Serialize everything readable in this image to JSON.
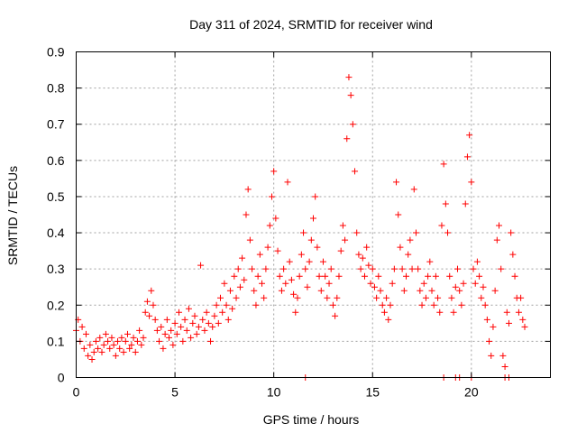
{
  "chart_data": {
    "type": "scatter",
    "title": "Day 311 of 2024, SRMTID for receiver wind",
    "xlabel": "GPS time / hours",
    "ylabel": "SRMTID / TECUs",
    "xlim": [
      0,
      24
    ],
    "ylim": [
      0,
      0.9
    ],
    "x_ticks": [
      0,
      5,
      10,
      15,
      20
    ],
    "x_tick_labels": [
      "0",
      "5",
      "10",
      "15",
      "20"
    ],
    "y_ticks": [
      0,
      0.1,
      0.2,
      0.3,
      0.4,
      0.5,
      0.6,
      0.7,
      0.8,
      0.9
    ],
    "y_tick_labels": [
      "0",
      "0.1",
      "0.2",
      "0.3",
      "0.4",
      "0.5",
      "0.6",
      "0.7",
      "0.8",
      "0.9"
    ],
    "grid": true,
    "marker": "+",
    "color": "#ff0000",
    "series": [
      {
        "name": "SRMTID",
        "points": [
          [
            0.0,
            0.13
          ],
          [
            0.1,
            0.16
          ],
          [
            0.2,
            0.1
          ],
          [
            0.3,
            0.14
          ],
          [
            0.4,
            0.08
          ],
          [
            0.5,
            0.12
          ],
          [
            0.6,
            0.06
          ],
          [
            0.7,
            0.09
          ],
          [
            0.8,
            0.05
          ],
          [
            0.9,
            0.07
          ],
          [
            1.0,
            0.1
          ],
          [
            1.1,
            0.08
          ],
          [
            1.2,
            0.11
          ],
          [
            1.3,
            0.07
          ],
          [
            1.4,
            0.09
          ],
          [
            1.5,
            0.12
          ],
          [
            1.6,
            0.1
          ],
          [
            1.7,
            0.08
          ],
          [
            1.8,
            0.11
          ],
          [
            1.9,
            0.09
          ],
          [
            2.0,
            0.06
          ],
          [
            2.1,
            0.1
          ],
          [
            2.2,
            0.08
          ],
          [
            2.3,
            0.11
          ],
          [
            2.4,
            0.07
          ],
          [
            2.5,
            0.1
          ],
          [
            2.6,
            0.12
          ],
          [
            2.7,
            0.08
          ],
          [
            2.8,
            0.09
          ],
          [
            2.9,
            0.11
          ],
          [
            3.0,
            0.07
          ],
          [
            3.1,
            0.1
          ],
          [
            3.2,
            0.13
          ],
          [
            3.3,
            0.09
          ],
          [
            3.4,
            0.11
          ],
          [
            3.5,
            0.18
          ],
          [
            3.6,
            0.21
          ],
          [
            3.7,
            0.17
          ],
          [
            3.8,
            0.24
          ],
          [
            3.9,
            0.2
          ],
          [
            4.0,
            0.16
          ],
          [
            4.1,
            0.13
          ],
          [
            4.2,
            0.1
          ],
          [
            4.3,
            0.14
          ],
          [
            4.4,
            0.08
          ],
          [
            4.5,
            0.12
          ],
          [
            4.6,
            0.16
          ],
          [
            4.7,
            0.11
          ],
          [
            4.8,
            0.13
          ],
          [
            4.9,
            0.09
          ],
          [
            5.0,
            0.15
          ],
          [
            5.1,
            0.12
          ],
          [
            5.2,
            0.18
          ],
          [
            5.3,
            0.14
          ],
          [
            5.4,
            0.1
          ],
          [
            5.5,
            0.16
          ],
          [
            5.6,
            0.13
          ],
          [
            5.7,
            0.19
          ],
          [
            5.8,
            0.11
          ],
          [
            5.9,
            0.15
          ],
          [
            6.0,
            0.17
          ],
          [
            6.1,
            0.12
          ],
          [
            6.2,
            0.14
          ],
          [
            6.3,
            0.31
          ],
          [
            6.4,
            0.16
          ],
          [
            6.5,
            0.13
          ],
          [
            6.6,
            0.18
          ],
          [
            6.7,
            0.15
          ],
          [
            6.8,
            0.1
          ],
          [
            6.9,
            0.14
          ],
          [
            7.0,
            0.17
          ],
          [
            7.1,
            0.2
          ],
          [
            7.2,
            0.15
          ],
          [
            7.3,
            0.22
          ],
          [
            7.4,
            0.18
          ],
          [
            7.5,
            0.26
          ],
          [
            7.6,
            0.2
          ],
          [
            7.7,
            0.16
          ],
          [
            7.8,
            0.24
          ],
          [
            7.9,
            0.19
          ],
          [
            8.0,
            0.28
          ],
          [
            8.1,
            0.22
          ],
          [
            8.2,
            0.3
          ],
          [
            8.3,
            0.25
          ],
          [
            8.4,
            0.33
          ],
          [
            8.5,
            0.27
          ],
          [
            8.6,
            0.45
          ],
          [
            8.7,
            0.52
          ],
          [
            8.8,
            0.38
          ],
          [
            8.9,
            0.3
          ],
          [
            9.0,
            0.24
          ],
          [
            9.1,
            0.2
          ],
          [
            9.2,
            0.28
          ],
          [
            9.3,
            0.34
          ],
          [
            9.4,
            0.26
          ],
          [
            9.5,
            0.22
          ],
          [
            9.6,
            0.3
          ],
          [
            9.7,
            0.36
          ],
          [
            9.8,
            0.42
          ],
          [
            9.9,
            0.5
          ],
          [
            10.0,
            0.57
          ],
          [
            10.1,
            0.44
          ],
          [
            10.2,
            0.35
          ],
          [
            10.3,
            0.28
          ],
          [
            10.4,
            0.24
          ],
          [
            10.5,
            0.3
          ],
          [
            10.6,
            0.26
          ],
          [
            10.7,
            0.54
          ],
          [
            10.8,
            0.32
          ],
          [
            10.9,
            0.27
          ],
          [
            11.0,
            0.23
          ],
          [
            11.1,
            0.18
          ],
          [
            11.2,
            0.22
          ],
          [
            11.3,
            0.28
          ],
          [
            11.4,
            0.34
          ],
          [
            11.5,
            0.4
          ],
          [
            11.6,
            0.3
          ],
          [
            11.7,
            0.25
          ],
          [
            11.8,
            0.32
          ],
          [
            11.9,
            0.38
          ],
          [
            12.0,
            0.44
          ],
          [
            12.1,
            0.5
          ],
          [
            12.2,
            0.36
          ],
          [
            12.3,
            0.28
          ],
          [
            12.4,
            0.24
          ],
          [
            12.5,
            0.32
          ],
          [
            12.6,
            0.28
          ],
          [
            12.7,
            0.22
          ],
          [
            12.8,
            0.26
          ],
          [
            12.9,
            0.3
          ],
          [
            13.0,
            0.2
          ],
          [
            13.1,
            0.17
          ],
          [
            13.2,
            0.22
          ],
          [
            13.3,
            0.28
          ],
          [
            13.4,
            0.35
          ],
          [
            13.5,
            0.42
          ],
          [
            13.6,
            0.38
          ],
          [
            13.7,
            0.66
          ],
          [
            13.8,
            0.83
          ],
          [
            13.9,
            0.78
          ],
          [
            14.0,
            0.7
          ],
          [
            14.1,
            0.57
          ],
          [
            14.2,
            0.4
          ],
          [
            14.3,
            0.34
          ],
          [
            14.4,
            0.3
          ],
          [
            14.5,
            0.33
          ],
          [
            14.6,
            0.28
          ],
          [
            14.7,
            0.36
          ],
          [
            14.8,
            0.31
          ],
          [
            14.9,
            0.26
          ],
          [
            15.0,
            0.3
          ],
          [
            15.1,
            0.25
          ],
          [
            15.2,
            0.22
          ],
          [
            15.3,
            0.28
          ],
          [
            15.4,
            0.24
          ],
          [
            15.5,
            0.2
          ],
          [
            15.6,
            0.18
          ],
          [
            15.7,
            0.22
          ],
          [
            15.8,
            0.16
          ],
          [
            15.9,
            0.2
          ],
          [
            16.0,
            0.26
          ],
          [
            16.1,
            0.3
          ],
          [
            16.2,
            0.54
          ],
          [
            16.3,
            0.45
          ],
          [
            16.4,
            0.36
          ],
          [
            16.5,
            0.3
          ],
          [
            16.6,
            0.24
          ],
          [
            16.7,
            0.28
          ],
          [
            16.8,
            0.34
          ],
          [
            16.9,
            0.38
          ],
          [
            17.0,
            0.3
          ],
          [
            17.1,
            0.52
          ],
          [
            17.2,
            0.4
          ],
          [
            17.3,
            0.3
          ],
          [
            17.4,
            0.24
          ],
          [
            17.5,
            0.2
          ],
          [
            17.6,
            0.26
          ],
          [
            17.7,
            0.22
          ],
          [
            17.8,
            0.28
          ],
          [
            17.9,
            0.32
          ],
          [
            18.0,
            0.24
          ],
          [
            18.1,
            0.2
          ],
          [
            18.2,
            0.28
          ],
          [
            18.3,
            0.22
          ],
          [
            18.4,
            0.18
          ],
          [
            18.5,
            0.42
          ],
          [
            18.6,
            0.59
          ],
          [
            18.7,
            0.48
          ],
          [
            18.8,
            0.4
          ],
          [
            18.9,
            0.28
          ],
          [
            19.0,
            0.22
          ],
          [
            19.1,
            0.18
          ],
          [
            19.2,
            0.25
          ],
          [
            19.3,
            0.3
          ],
          [
            19.4,
            0.24
          ],
          [
            19.5,
            0.2
          ],
          [
            19.6,
            0.26
          ],
          [
            19.7,
            0.48
          ],
          [
            19.8,
            0.61
          ],
          [
            19.9,
            0.67
          ],
          [
            20.0,
            0.54
          ],
          [
            20.1,
            0.3
          ],
          [
            20.2,
            0.26
          ],
          [
            20.3,
            0.32
          ],
          [
            20.4,
            0.28
          ],
          [
            20.5,
            0.22
          ],
          [
            20.6,
            0.25
          ],
          [
            20.7,
            0.2
          ],
          [
            20.8,
            0.16
          ],
          [
            20.9,
            0.1
          ],
          [
            21.0,
            0.06
          ],
          [
            21.1,
            0.14
          ],
          [
            21.2,
            0.24
          ],
          [
            21.3,
            0.38
          ],
          [
            21.4,
            0.42
          ],
          [
            21.5,
            0.3
          ],
          [
            21.6,
            0.06
          ],
          [
            21.7,
            0.03
          ],
          [
            21.8,
            0.18
          ],
          [
            21.9,
            0.15
          ],
          [
            22.0,
            0.4
          ],
          [
            22.1,
            0.34
          ],
          [
            22.2,
            0.28
          ],
          [
            22.3,
            0.22
          ],
          [
            22.4,
            0.18
          ],
          [
            22.5,
            0.22
          ],
          [
            22.6,
            0.16
          ],
          [
            22.7,
            0.14
          ],
          [
            11.6,
            0.0
          ],
          [
            18.6,
            0.0
          ],
          [
            19.2,
            0.0
          ],
          [
            19.4,
            0.0
          ],
          [
            20.0,
            0.0
          ],
          [
            21.7,
            0.0
          ],
          [
            21.9,
            0.0
          ]
        ]
      }
    ]
  }
}
